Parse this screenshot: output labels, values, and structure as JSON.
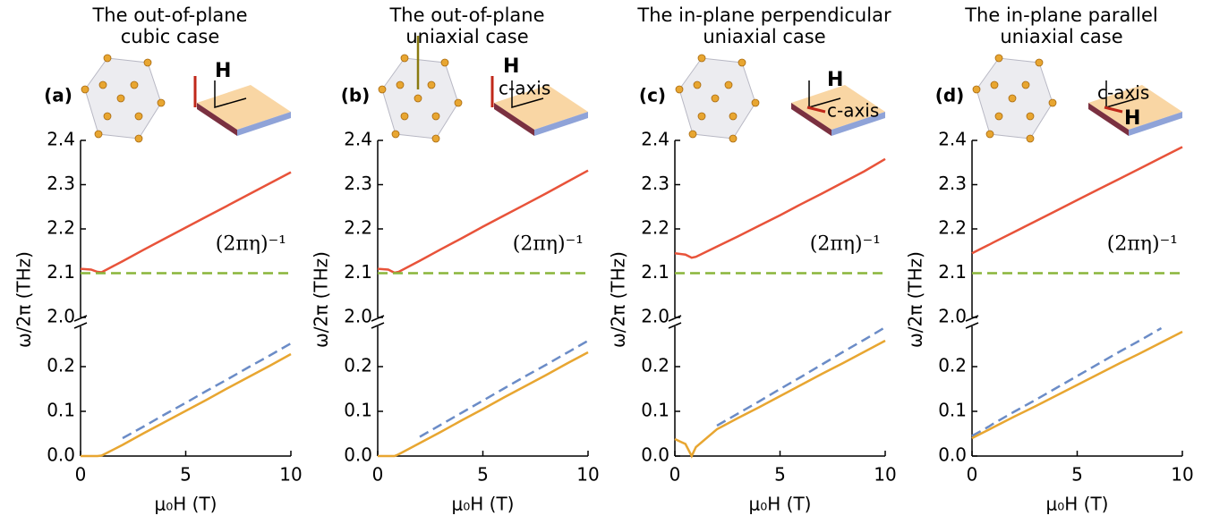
{
  "chart_data": [
    {
      "type": "line",
      "title": [
        "The out-of-plane",
        "cubic case"
      ],
      "panel_label": "(a)",
      "annotation": "(2πη)⁻¹",
      "inset_labels": [
        "H"
      ],
      "xlabel": "μ₀H (T)",
      "ylabel": "ω/2π (THz)",
      "x": [
        0,
        0.5,
        0.8,
        1,
        2,
        3,
        4,
        5,
        6,
        7,
        8,
        9,
        10
      ],
      "xlim": [
        0,
        10
      ],
      "xticks": [
        0,
        5,
        10
      ],
      "ylim_lower": [
        0,
        0.29
      ],
      "yticks_lower": [
        {
          "value": 0,
          "label": "0.0"
        },
        0.1,
        0.2
      ],
      "ylim_upper": [
        2.0,
        2.4
      ],
      "yticks_upper": [
        {
          "value": 2.0,
          "label": "2.0"
        },
        2.1,
        2.2,
        2.3,
        2.4
      ],
      "series": [
        {
          "color": "#e8533a",
          "axis": "upper",
          "dash": false,
          "values": [
            2.11,
            2.108,
            2.103,
            2.102,
            2.127,
            2.153,
            2.178,
            2.203,
            2.228,
            2.253,
            2.278,
            2.303,
            2.328
          ]
        },
        {
          "color": "#8ab53a",
          "axis": "upper",
          "dash": true,
          "values": [
            2.1,
            2.1,
            2.1,
            2.1,
            2.1,
            2.1,
            2.1,
            2.1,
            2.1,
            2.1,
            2.1,
            2.1,
            2.1
          ]
        },
        {
          "color": "#6b8cc7",
          "axis": "lower",
          "dash": true,
          "values": [
            null,
            null,
            null,
            null,
            0.04,
            0.066,
            0.093,
            0.119,
            0.146,
            0.172,
            0.199,
            0.225,
            0.252
          ]
        },
        {
          "color": "#e8a631",
          "axis": "lower",
          "dash": false,
          "values": [
            0,
            0,
            0,
            0.001,
            0.025,
            0.051,
            0.076,
            0.101,
            0.126,
            0.152,
            0.177,
            0.202,
            0.228
          ]
        }
      ]
    },
    {
      "type": "line",
      "title": [
        "The out-of-plane",
        "uniaxial case"
      ],
      "panel_label": "(b)",
      "annotation": "(2πη)⁻¹",
      "inset_labels": [
        "H",
        "c-axis"
      ],
      "xlabel": "μ₀H (T)",
      "ylabel": "ω/2π (THz)",
      "x": [
        0,
        0.5,
        0.8,
        1,
        2,
        3,
        4,
        5,
        6,
        7,
        8,
        9,
        10
      ],
      "xlim": [
        0,
        10
      ],
      "xticks": [
        0,
        5,
        10
      ],
      "ylim_lower": [
        0,
        0.29
      ],
      "yticks_lower": [
        {
          "value": 0,
          "label": "0.0"
        },
        0.1,
        0.2
      ],
      "ylim_upper": [
        2.0,
        2.4
      ],
      "yticks_upper": [
        {
          "value": 2.0,
          "label": "2.0"
        },
        2.1,
        2.2,
        2.3,
        2.4
      ],
      "series": [
        {
          "color": "#e8533a",
          "axis": "upper",
          "dash": false,
          "values": [
            2.11,
            2.108,
            2.101,
            2.103,
            2.128,
            2.154,
            2.179,
            2.205,
            2.23,
            2.255,
            2.28,
            2.306,
            2.332
          ]
        },
        {
          "color": "#8ab53a",
          "axis": "upper",
          "dash": true,
          "values": [
            2.1,
            2.1,
            2.1,
            2.1,
            2.1,
            2.1,
            2.1,
            2.1,
            2.1,
            2.1,
            2.1,
            2.1,
            2.1
          ]
        },
        {
          "color": "#6b8cc7",
          "axis": "lower",
          "dash": true,
          "values": [
            null,
            null,
            null,
            null,
            0.043,
            0.07,
            0.097,
            0.124,
            0.151,
            0.178,
            0.204,
            0.231,
            0.258
          ]
        },
        {
          "color": "#e8a631",
          "axis": "lower",
          "dash": false,
          "values": [
            0,
            0,
            0,
            0.004,
            0.029,
            0.054,
            0.08,
            0.105,
            0.131,
            0.156,
            0.181,
            0.207,
            0.232
          ]
        }
      ]
    },
    {
      "type": "line",
      "title": [
        "The in-plane perpendicular",
        "uniaxial case"
      ],
      "panel_label": "(c)",
      "annotation": "(2πη)⁻¹",
      "inset_labels": [
        "H",
        "c-axis"
      ],
      "xlabel": "μ₀H (T)",
      "ylabel": "ω/2π (THz)",
      "x": [
        0,
        0.5,
        0.8,
        1,
        2,
        3,
        4,
        5,
        6,
        7,
        8,
        9,
        10
      ],
      "xlim": [
        0,
        10
      ],
      "xticks": [
        0,
        5,
        10
      ],
      "ylim_lower": [
        0,
        0.29
      ],
      "yticks_lower": [
        {
          "value": 0,
          "label": "0.0"
        },
        0.1,
        0.2
      ],
      "ylim_upper": [
        2.0,
        2.4
      ],
      "yticks_upper": [
        {
          "value": 2.0,
          "label": "2.0"
        },
        2.1,
        2.2,
        2.3,
        2.4
      ],
      "series": [
        {
          "color": "#e8533a",
          "axis": "upper",
          "dash": false,
          "values": [
            2.145,
            2.142,
            2.135,
            2.137,
            2.16,
            2.183,
            2.207,
            2.231,
            2.256,
            2.28,
            2.305,
            2.33,
            2.358
          ]
        },
        {
          "color": "#8ab53a",
          "axis": "upper",
          "dash": true,
          "values": [
            2.1,
            2.1,
            2.1,
            2.1,
            2.1,
            2.1,
            2.1,
            2.1,
            2.1,
            2.1,
            2.1,
            2.1,
            2.1
          ]
        },
        {
          "color": "#6b8cc7",
          "axis": "lower",
          "dash": true,
          "values": [
            null,
            null,
            null,
            null,
            0.068,
            0.095,
            0.122,
            0.15,
            0.177,
            0.205,
            0.233,
            0.26,
            0.288
          ]
        },
        {
          "color": "#e8a631",
          "axis": "lower",
          "dash": false,
          "values": [
            0.038,
            0.027,
            0,
            0.02,
            0.06,
            0.085,
            0.109,
            0.134,
            0.159,
            0.184,
            0.208,
            0.233,
            0.258
          ]
        }
      ]
    },
    {
      "type": "line",
      "title": [
        "The in-plane parallel",
        "uniaxial case"
      ],
      "panel_label": "(d)",
      "annotation": "(2πη)⁻¹",
      "inset_labels": [
        "c-axis",
        "H"
      ],
      "xlabel": "μ₀H (T)",
      "ylabel": "ω/2π (THz)",
      "x": [
        0,
        0.5,
        0.8,
        1,
        2,
        3,
        4,
        5,
        6,
        7,
        8,
        9,
        10
      ],
      "xlim": [
        0,
        10
      ],
      "xticks": [
        0,
        5,
        10
      ],
      "ylim_lower": [
        0,
        0.29
      ],
      "yticks_lower": [
        {
          "value": 0,
          "label": "0.0"
        },
        0.1,
        0.2
      ],
      "ylim_upper": [
        2.0,
        2.4
      ],
      "yticks_upper": [
        {
          "value": 2.0,
          "label": "2.0"
        },
        2.1,
        2.2,
        2.3,
        2.4
      ],
      "series": [
        {
          "color": "#e8533a",
          "axis": "upper",
          "dash": false,
          "values": [
            2.145,
            2.157,
            2.164,
            2.169,
            2.193,
            2.217,
            2.241,
            2.265,
            2.289,
            2.313,
            2.337,
            2.361,
            2.385
          ]
        },
        {
          "color": "#8ab53a",
          "axis": "upper",
          "dash": true,
          "values": [
            2.1,
            2.1,
            2.1,
            2.1,
            2.1,
            2.1,
            2.1,
            2.1,
            2.1,
            2.1,
            2.1,
            2.1,
            2.1
          ]
        },
        {
          "color": "#6b8cc7",
          "axis": "lower",
          "dash": true,
          "values": [
            0.045,
            0.058,
            0.066,
            0.072,
            0.099,
            0.125,
            0.152,
            0.179,
            0.206,
            0.233,
            0.259,
            0.286,
            null
          ]
        },
        {
          "color": "#e8a631",
          "axis": "lower",
          "dash": false,
          "values": [
            0.04,
            0.052,
            0.059,
            0.064,
            0.088,
            0.111,
            0.135,
            0.159,
            0.183,
            0.207,
            0.23,
            0.254,
            0.278
          ]
        }
      ]
    }
  ]
}
